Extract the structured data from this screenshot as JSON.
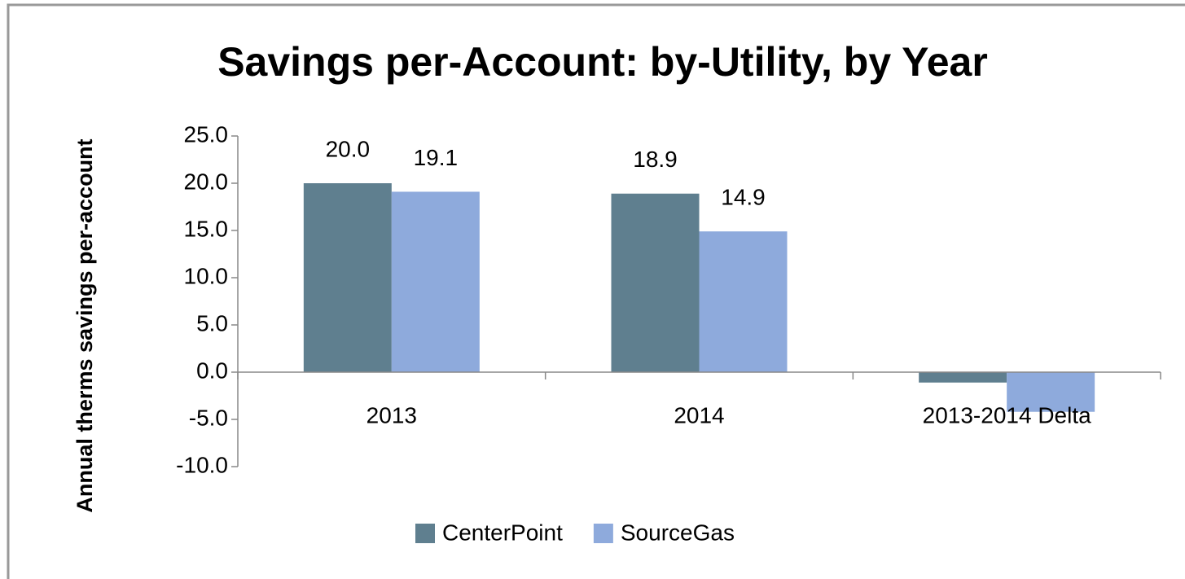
{
  "chart_data": {
    "type": "bar",
    "title": "Savings per-Account: by-Utility, by Year",
    "y_label": "Annual therms savings per-account",
    "categories": [
      "2013",
      "2014",
      "2013-2014 Delta"
    ],
    "series": [
      {
        "name": "CenterPoint",
        "color": "#5f7f8f",
        "values": [
          20.0,
          18.9,
          -1.1
        ],
        "value_labels": [
          "20.0",
          "18.9",
          null
        ]
      },
      {
        "name": "SourceGas",
        "color": "#8eaadc",
        "values": [
          19.1,
          14.9,
          -4.2
        ],
        "value_labels": [
          "19.1",
          "14.9",
          null
        ]
      }
    ],
    "ylim": [
      -10,
      25
    ],
    "yticks": [
      {
        "value": 25,
        "label": "25.0"
      },
      {
        "value": 20,
        "label": "20.0"
      },
      {
        "value": 15,
        "label": "15.0"
      },
      {
        "value": 10,
        "label": "10.0"
      },
      {
        "value": 5,
        "label": "5.0"
      },
      {
        "value": 0,
        "label": "0.0"
      },
      {
        "value": -5,
        "label": "-5.0"
      },
      {
        "value": -10,
        "label": "-10.0"
      }
    ],
    "legend": "bottom"
  }
}
